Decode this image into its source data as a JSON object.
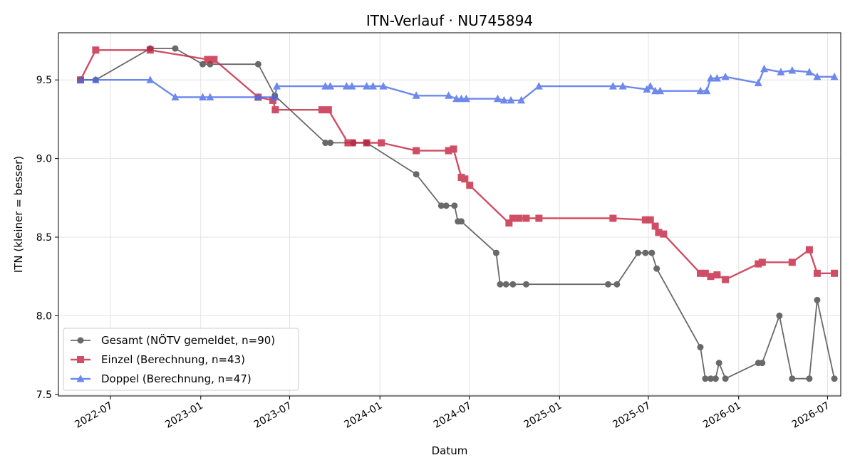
{
  "chart_data": {
    "type": "line",
    "title": "ITN-Verlauf · NU745894",
    "xlabel": "Datum",
    "ylabel": "ITN  (kleiner = besser)",
    "xlim": [
      "2022-03-17",
      "2026-07-28"
    ],
    "ylim": [
      7.49,
      9.8
    ],
    "x_ticks": [
      "2022-07-01",
      "2023-01-01",
      "2023-07-01",
      "2024-01-01",
      "2024-07-01",
      "2025-01-01",
      "2025-07-01",
      "2026-01-01",
      "2026-07-01"
    ],
    "x_tick_labels": [
      "2022-07",
      "2023-01",
      "2023-07",
      "2024-01",
      "2024-07",
      "2025-01",
      "2025-07",
      "2026-01",
      "2026-07"
    ],
    "y_ticks": [
      7.5,
      8.0,
      8.5,
      9.0,
      9.5
    ],
    "y_tick_labels": [
      "7.5",
      "8.0",
      "8.5",
      "9.0",
      "9.5"
    ],
    "grid": true,
    "legend_position": "bottom-left",
    "series": [
      {
        "name": "Gesamt (NÖTV gemeldet, n=90)",
        "color": "#444444",
        "marker": "circle",
        "points": [
          [
            "2022-05-01",
            9.5
          ],
          [
            "2022-06-01",
            9.5
          ],
          [
            "2022-09-20",
            9.7
          ],
          [
            "2022-11-10",
            9.7
          ],
          [
            "2023-01-05",
            9.6
          ],
          [
            "2023-01-20",
            9.6
          ],
          [
            "2023-04-28",
            9.6
          ],
          [
            "2023-06-01",
            9.4
          ],
          [
            "2023-09-12",
            9.1
          ],
          [
            "2023-09-22",
            9.1
          ],
          [
            "2023-11-08",
            9.1
          ],
          [
            "2023-12-05",
            9.1
          ],
          [
            "2024-03-15",
            8.9
          ],
          [
            "2024-05-05",
            8.7
          ],
          [
            "2024-05-15",
            8.7
          ],
          [
            "2024-06-01",
            8.7
          ],
          [
            "2024-06-08",
            8.6
          ],
          [
            "2024-06-15",
            8.6
          ],
          [
            "2024-08-25",
            8.4
          ],
          [
            "2024-09-02",
            8.2
          ],
          [
            "2024-09-14",
            8.2
          ],
          [
            "2024-09-28",
            8.2
          ],
          [
            "2024-10-25",
            8.2
          ],
          [
            "2025-04-10",
            8.2
          ],
          [
            "2025-04-28",
            8.2
          ],
          [
            "2025-06-10",
            8.4
          ],
          [
            "2025-06-25",
            8.4
          ],
          [
            "2025-07-08",
            8.4
          ],
          [
            "2025-07-18",
            8.3
          ],
          [
            "2025-10-15",
            7.8
          ],
          [
            "2025-10-25",
            7.6
          ],
          [
            "2025-11-05",
            7.6
          ],
          [
            "2025-11-15",
            7.6
          ],
          [
            "2025-11-22",
            7.7
          ],
          [
            "2025-12-05",
            7.6
          ],
          [
            "2026-02-10",
            7.7
          ],
          [
            "2026-02-18",
            7.7
          ],
          [
            "2026-03-25",
            8.0
          ],
          [
            "2026-04-20",
            7.6
          ],
          [
            "2026-05-25",
            7.6
          ],
          [
            "2026-06-10",
            8.1
          ],
          [
            "2026-07-15",
            7.6
          ]
        ]
      },
      {
        "name": "Einzel (Berechnung, n=43)",
        "color": "#c4233f",
        "marker": "square",
        "points": [
          [
            "2022-05-01",
            9.5
          ],
          [
            "2022-06-01",
            9.69
          ],
          [
            "2022-09-20",
            9.69
          ],
          [
            "2023-01-15",
            9.63
          ],
          [
            "2023-01-28",
            9.63
          ],
          [
            "2023-04-28",
            9.39
          ],
          [
            "2023-05-28",
            9.37
          ],
          [
            "2023-06-02",
            9.31
          ],
          [
            "2023-09-05",
            9.31
          ],
          [
            "2023-09-18",
            9.31
          ],
          [
            "2023-10-28",
            9.1
          ],
          [
            "2023-11-06",
            9.1
          ],
          [
            "2023-12-05",
            9.1
          ],
          [
            "2024-01-04",
            9.1
          ],
          [
            "2024-03-15",
            9.05
          ],
          [
            "2024-05-20",
            9.05
          ],
          [
            "2024-05-30",
            9.06
          ],
          [
            "2024-06-15",
            8.88
          ],
          [
            "2024-06-22",
            8.87
          ],
          [
            "2024-07-02",
            8.83
          ],
          [
            "2024-09-20",
            8.59
          ],
          [
            "2024-09-28",
            8.62
          ],
          [
            "2024-10-10",
            8.62
          ],
          [
            "2024-10-25",
            8.62
          ],
          [
            "2024-11-20",
            8.62
          ],
          [
            "2025-04-20",
            8.62
          ],
          [
            "2025-06-25",
            8.61
          ],
          [
            "2025-07-05",
            8.61
          ],
          [
            "2025-07-15",
            8.57
          ],
          [
            "2025-07-22",
            8.53
          ],
          [
            "2025-08-01",
            8.52
          ],
          [
            "2025-10-15",
            8.27
          ],
          [
            "2025-10-25",
            8.27
          ],
          [
            "2025-11-05",
            8.25
          ],
          [
            "2025-11-18",
            8.26
          ],
          [
            "2025-12-05",
            8.23
          ],
          [
            "2026-02-10",
            8.33
          ],
          [
            "2026-02-18",
            8.34
          ],
          [
            "2026-04-20",
            8.34
          ],
          [
            "2026-05-25",
            8.42
          ],
          [
            "2026-06-10",
            8.27
          ],
          [
            "2026-07-15",
            8.27
          ]
        ]
      },
      {
        "name": "Doppel (Berechnung, n=47)",
        "color": "#4a6ce8",
        "marker": "triangle",
        "points": [
          [
            "2022-05-01",
            9.5
          ],
          [
            "2022-06-01",
            9.5
          ],
          [
            "2022-09-20",
            9.5
          ],
          [
            "2022-11-10",
            9.39
          ],
          [
            "2023-01-05",
            9.39
          ],
          [
            "2023-01-20",
            9.39
          ],
          [
            "2023-04-28",
            9.39
          ],
          [
            "2023-06-01",
            9.39
          ],
          [
            "2023-06-05",
            9.46
          ],
          [
            "2023-09-12",
            9.46
          ],
          [
            "2023-09-22",
            9.46
          ],
          [
            "2023-10-25",
            9.46
          ],
          [
            "2023-11-05",
            9.46
          ],
          [
            "2023-12-05",
            9.46
          ],
          [
            "2023-12-18",
            9.46
          ],
          [
            "2024-01-08",
            9.46
          ],
          [
            "2024-03-15",
            9.4
          ],
          [
            "2024-05-20",
            9.4
          ],
          [
            "2024-06-05",
            9.38
          ],
          [
            "2024-06-15",
            9.38
          ],
          [
            "2024-06-25",
            9.38
          ],
          [
            "2024-08-28",
            9.38
          ],
          [
            "2024-09-10",
            9.37
          ],
          [
            "2024-09-24",
            9.37
          ],
          [
            "2024-10-15",
            9.37
          ],
          [
            "2024-11-20",
            9.46
          ],
          [
            "2025-04-20",
            9.46
          ],
          [
            "2025-05-10",
            9.46
          ],
          [
            "2025-06-28",
            9.44
          ],
          [
            "2025-07-05",
            9.46
          ],
          [
            "2025-07-15",
            9.43
          ],
          [
            "2025-07-25",
            9.43
          ],
          [
            "2025-10-15",
            9.43
          ],
          [
            "2025-10-28",
            9.43
          ],
          [
            "2025-11-05",
            9.51
          ],
          [
            "2025-11-18",
            9.51
          ],
          [
            "2025-12-05",
            9.52
          ],
          [
            "2026-02-10",
            9.48
          ],
          [
            "2026-02-22",
            9.57
          ],
          [
            "2026-03-28",
            9.55
          ],
          [
            "2026-04-20",
            9.56
          ],
          [
            "2026-05-25",
            9.55
          ],
          [
            "2026-06-10",
            9.52
          ],
          [
            "2026-07-15",
            9.52
          ]
        ]
      }
    ]
  }
}
